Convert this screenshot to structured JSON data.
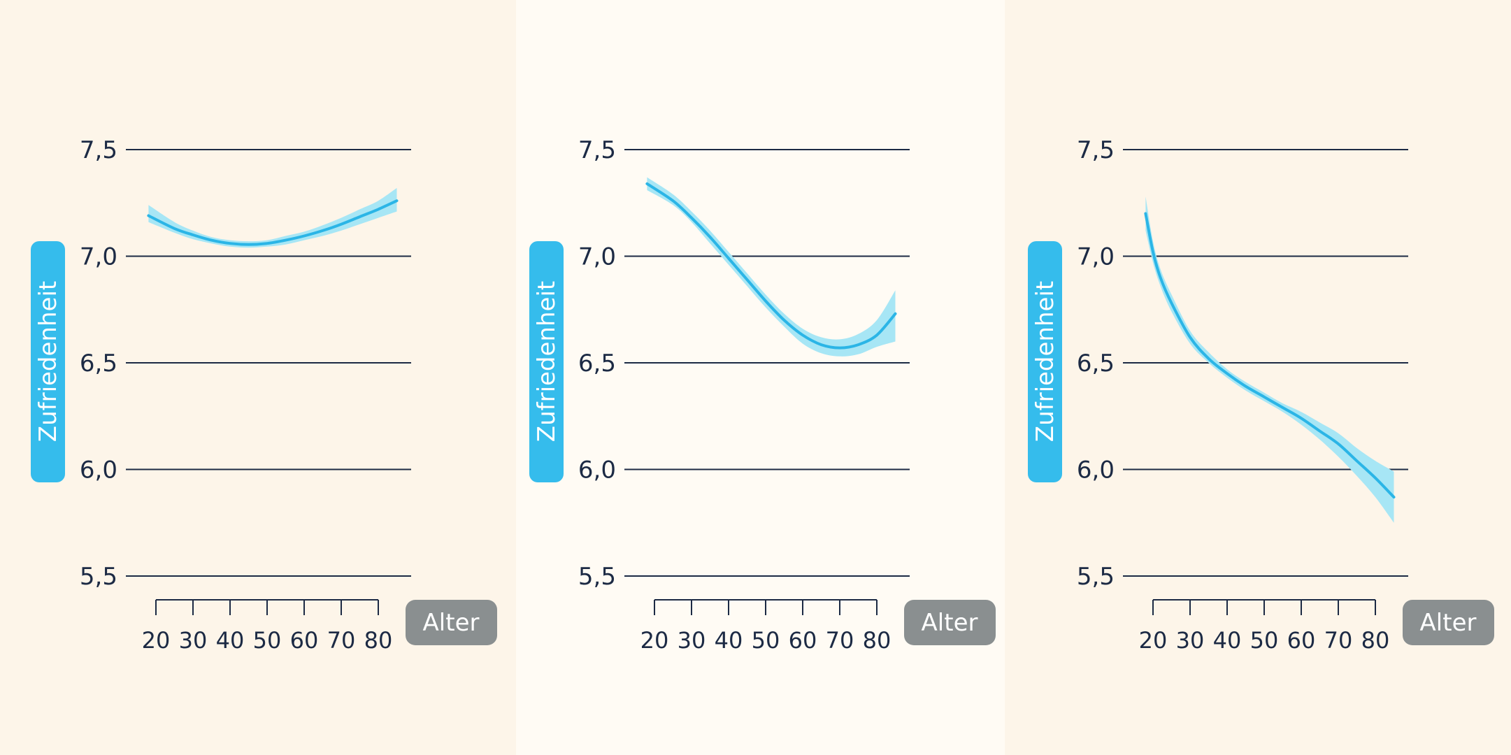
{
  "colors": {
    "panel_bg_outer": "#fdf5e9",
    "panel_bg_middle": "#fffbf4",
    "line": "#2bb5e6",
    "band": "#a7e6f5",
    "grid": "#1c2a44",
    "text": "#1c2a44",
    "ylabel_pill": "#35bcec",
    "xlabel_pill": "#8a8f90"
  },
  "chart_data": [
    {
      "type": "line",
      "ylabel": "Zufriedenheit",
      "xlabel": "Alter",
      "ylim": [
        5.5,
        7.5
      ],
      "yticks": [
        "5,5",
        "6,0",
        "6,5",
        "7,0",
        "7,5"
      ],
      "xticks": [
        "20",
        "30",
        "40",
        "50",
        "60",
        "70",
        "80"
      ],
      "grid": true,
      "x": [
        18,
        25,
        30,
        35,
        40,
        45,
        50,
        55,
        60,
        65,
        70,
        75,
        80,
        85
      ],
      "values": [
        7.19,
        7.13,
        7.1,
        7.075,
        7.06,
        7.055,
        7.06,
        7.075,
        7.095,
        7.12,
        7.15,
        7.185,
        7.22,
        7.26
      ],
      "lower": [
        7.16,
        7.11,
        7.08,
        7.06,
        7.045,
        7.04,
        7.045,
        7.055,
        7.075,
        7.095,
        7.12,
        7.15,
        7.18,
        7.21
      ],
      "upper": [
        7.24,
        7.16,
        7.12,
        7.09,
        7.075,
        7.07,
        7.075,
        7.095,
        7.115,
        7.145,
        7.18,
        7.22,
        7.26,
        7.32
      ]
    },
    {
      "type": "line",
      "ylabel": "Zufriedenheit",
      "xlabel": "Alter",
      "ylim": [
        5.5,
        7.5
      ],
      "yticks": [
        "5,5",
        "6,0",
        "6,5",
        "7,0",
        "7,5"
      ],
      "xticks": [
        "20",
        "30",
        "40",
        "50",
        "60",
        "70",
        "80"
      ],
      "grid": true,
      "x": [
        18,
        25,
        30,
        35,
        40,
        45,
        50,
        55,
        60,
        65,
        70,
        75,
        80,
        85
      ],
      "values": [
        7.34,
        7.26,
        7.18,
        7.09,
        6.99,
        6.89,
        6.79,
        6.7,
        6.63,
        6.585,
        6.57,
        6.585,
        6.63,
        6.73
      ],
      "lower": [
        7.31,
        7.24,
        7.16,
        7.06,
        6.96,
        6.86,
        6.76,
        6.67,
        6.59,
        6.545,
        6.53,
        6.54,
        6.575,
        6.6
      ],
      "upper": [
        7.37,
        7.29,
        7.21,
        7.12,
        7.02,
        6.92,
        6.82,
        6.73,
        6.66,
        6.62,
        6.61,
        6.635,
        6.7,
        6.84
      ]
    },
    {
      "type": "line",
      "ylabel": "Zufriedenheit",
      "xlabel": "Alter",
      "ylim": [
        5.5,
        7.5
      ],
      "yticks": [
        "5,5",
        "6,0",
        "6,5",
        "7,0",
        "7,5"
      ],
      "xticks": [
        "20",
        "30",
        "40",
        "50",
        "60",
        "70",
        "80"
      ],
      "grid": true,
      "x": [
        18,
        20,
        22,
        25,
        30,
        35,
        40,
        45,
        50,
        55,
        60,
        65,
        70,
        75,
        80,
        85
      ],
      "values": [
        7.2,
        7.02,
        6.9,
        6.78,
        6.62,
        6.52,
        6.45,
        6.39,
        6.34,
        6.29,
        6.24,
        6.18,
        6.12,
        6.04,
        5.96,
        5.87
      ],
      "lower": [
        7.12,
        6.97,
        6.86,
        6.74,
        6.59,
        6.5,
        6.43,
        6.37,
        6.32,
        6.27,
        6.21,
        6.14,
        6.06,
        5.97,
        5.87,
        5.75
      ],
      "upper": [
        7.28,
        7.07,
        6.94,
        6.82,
        6.65,
        6.55,
        6.47,
        6.41,
        6.36,
        6.31,
        6.27,
        6.22,
        6.17,
        6.1,
        6.04,
        5.99
      ]
    }
  ]
}
